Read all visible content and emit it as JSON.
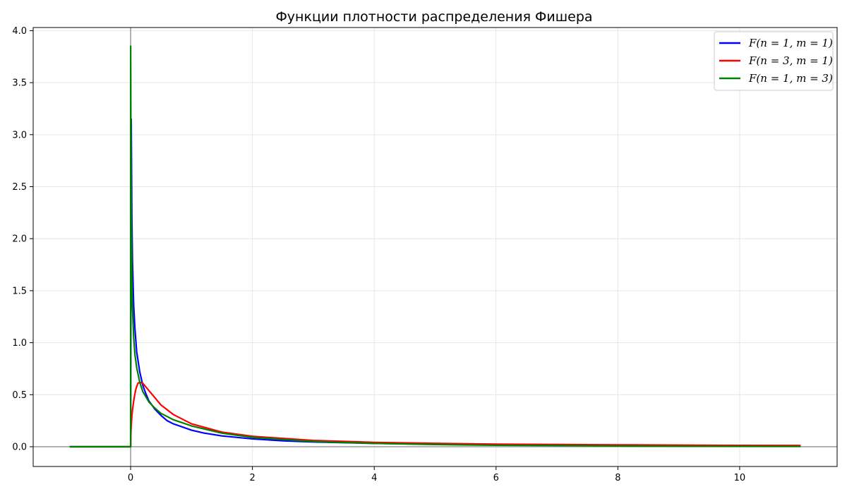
{
  "chart_data": {
    "type": "line",
    "title": "Функции плотности распределения Фишера",
    "xlabel": "",
    "ylabel": "",
    "xlim": [
      -1.6,
      11.6
    ],
    "ylim": [
      -0.19,
      4.03
    ],
    "x_ticks": [
      0,
      2,
      4,
      6,
      8,
      10
    ],
    "y_ticks": [
      0.0,
      0.5,
      1.0,
      1.5,
      2.0,
      2.5,
      3.0,
      3.5,
      4.0
    ],
    "x_tick_labels": [
      "0",
      "2",
      "4",
      "6",
      "8",
      "10"
    ],
    "y_tick_labels": [
      "0.0",
      "0.5",
      "1.0",
      "1.5",
      "2.0",
      "2.5",
      "3.0",
      "3.5",
      "4.0"
    ],
    "grid": true,
    "legend_position": "top-right",
    "reference_lines": {
      "y": 0,
      "x": 0,
      "color": "#999999"
    },
    "series": [
      {
        "name": "F(n = 1, m = 1)",
        "color": "#0000ff",
        "x": [
          -1,
          0,
          0.01,
          0.02,
          0.03,
          0.05,
          0.07,
          0.1,
          0.15,
          0.2,
          0.25,
          0.3,
          0.4,
          0.5,
          0.6,
          0.7,
          0.8,
          1.0,
          1.2,
          1.5,
          2.0,
          2.5,
          3.0,
          4.0,
          5.0,
          6.0,
          7.0,
          8.0,
          9.0,
          10.0,
          11.0
        ],
        "y": [
          0,
          0,
          3.15,
          2.21,
          1.79,
          1.36,
          1.14,
          0.91,
          0.72,
          0.59,
          0.51,
          0.44,
          0.36,
          0.3,
          0.25,
          0.22,
          0.2,
          0.159,
          0.132,
          0.104,
          0.075,
          0.057,
          0.046,
          0.032,
          0.024,
          0.019,
          0.015,
          0.012,
          0.01,
          0.009,
          0.008
        ]
      },
      {
        "name": "F(n = 3, m = 1)",
        "color": "#ff0000",
        "x": [
          -1,
          0,
          0.005,
          0.01,
          0.02,
          0.03,
          0.05,
          0.08,
          0.1,
          0.12,
          0.15,
          0.2,
          0.3,
          0.4,
          0.5,
          0.7,
          1.0,
          1.5,
          2.0,
          3.0,
          4.0,
          5.0,
          6.0,
          8.0,
          10.0,
          11.0
        ],
        "y": [
          0,
          0,
          0.14,
          0.2,
          0.29,
          0.35,
          0.44,
          0.54,
          0.58,
          0.61,
          0.62,
          0.61,
          0.54,
          0.47,
          0.4,
          0.31,
          0.22,
          0.14,
          0.1,
          0.06,
          0.042,
          0.032,
          0.025,
          0.018,
          0.013,
          0.012
        ]
      },
      {
        "name": "F(n = 1, m = 3)",
        "color": "#008000",
        "x": [
          -1,
          0,
          0.001,
          0.005,
          0.01,
          0.02,
          0.03,
          0.05,
          0.07,
          0.1,
          0.15,
          0.2,
          0.3,
          0.4,
          0.5,
          0.7,
          1.0,
          1.5,
          2.0,
          3.0,
          4.0,
          5.0,
          6.0,
          8.0,
          10.0,
          11.0
        ],
        "y": [
          0,
          0,
          3.85,
          2.88,
          2.22,
          1.61,
          1.34,
          1.05,
          0.89,
          0.76,
          0.62,
          0.53,
          0.43,
          0.37,
          0.32,
          0.26,
          0.2,
          0.13,
          0.09,
          0.05,
          0.032,
          0.021,
          0.014,
          0.007,
          0.004,
          0.003
        ]
      }
    ]
  }
}
